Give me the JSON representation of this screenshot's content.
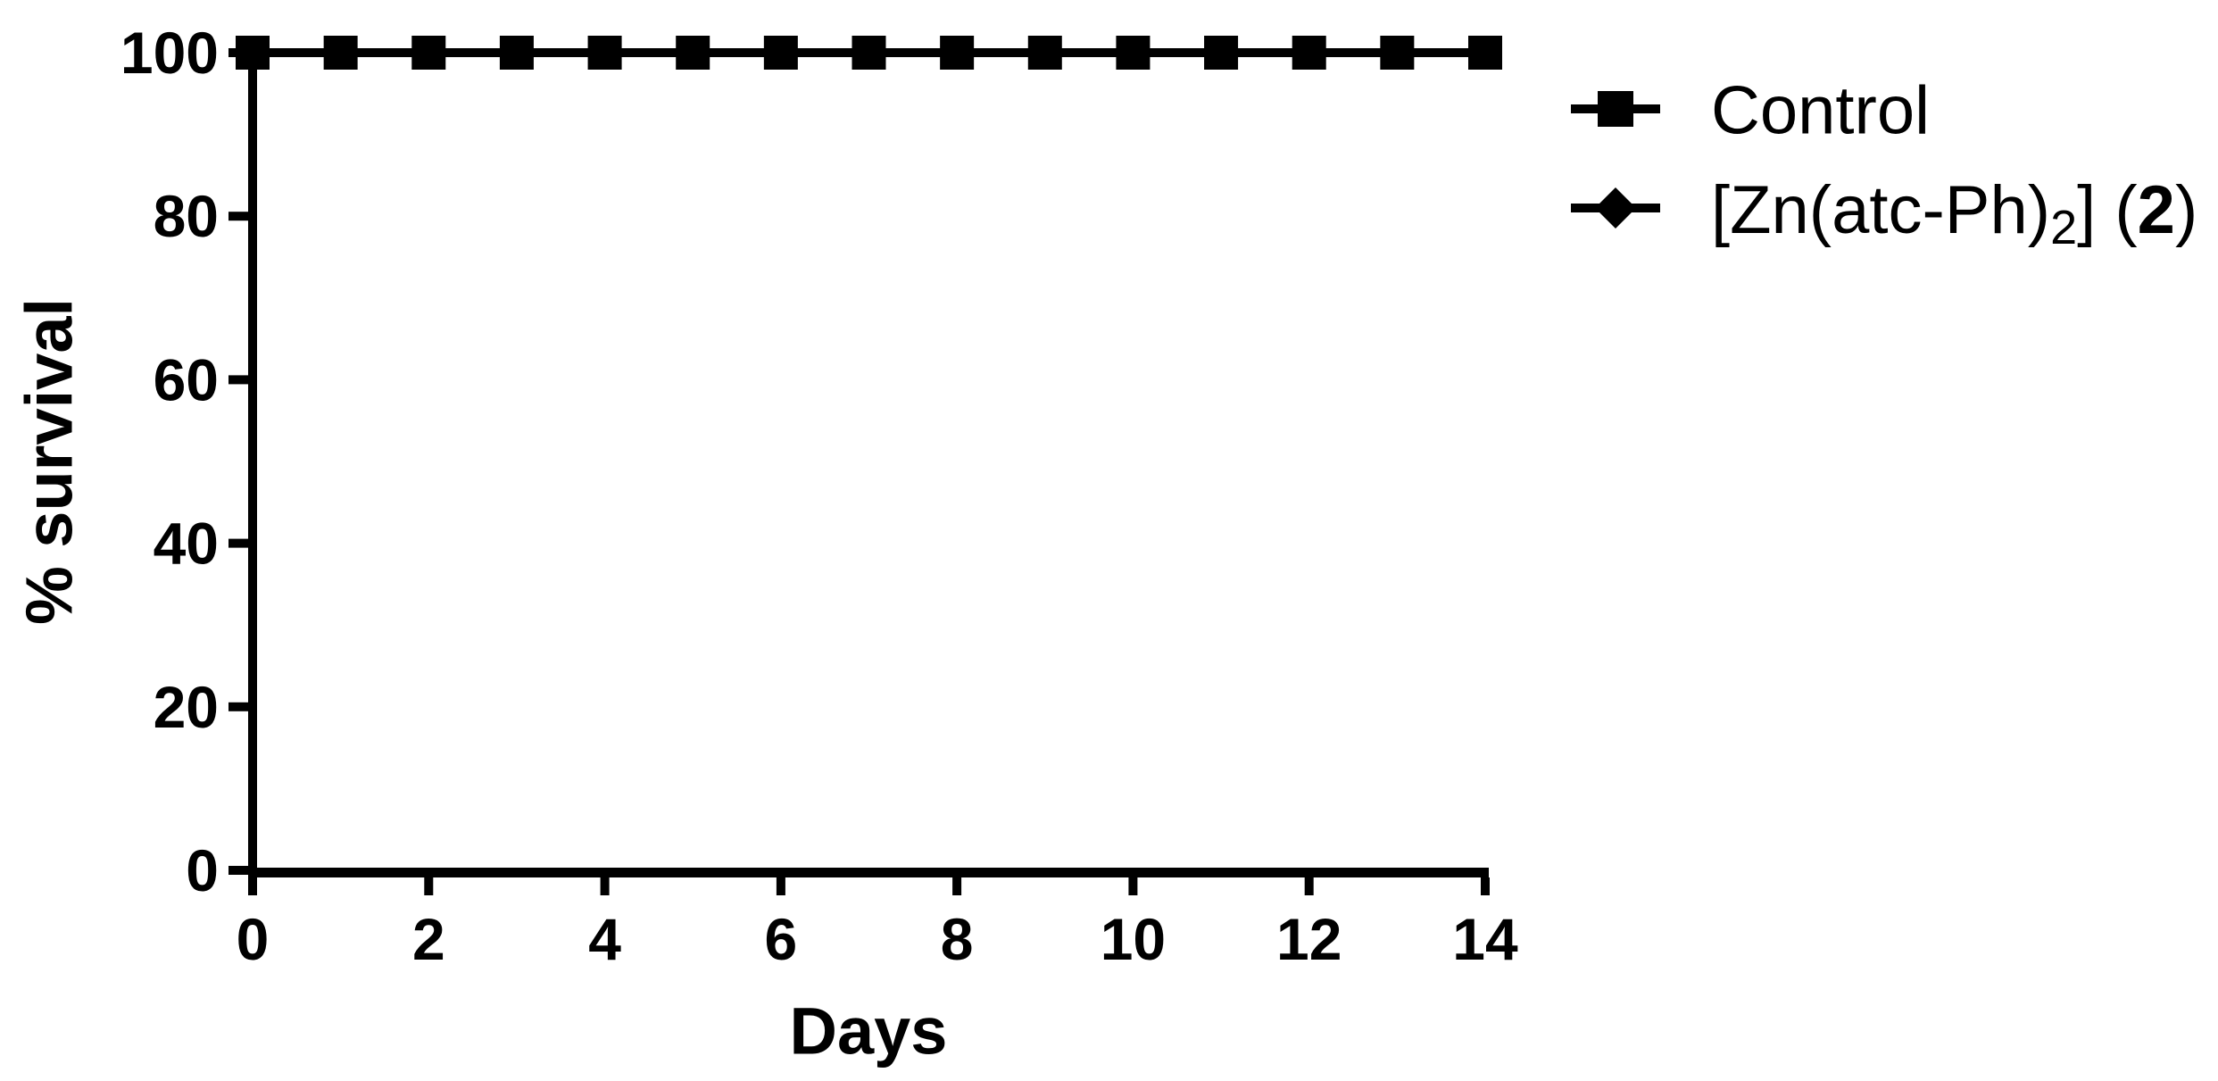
{
  "chart_data": {
    "type": "line",
    "title": "",
    "xlabel": "Days",
    "ylabel": "% survival",
    "x": [
      0,
      1,
      2,
      3,
      4,
      5,
      6,
      7,
      8,
      9,
      10,
      11,
      12,
      13,
      14
    ],
    "series": [
      {
        "name": "Control",
        "marker": "square",
        "values": [
          100,
          100,
          100,
          100,
          100,
          100,
          100,
          100,
          100,
          100,
          100,
          100,
          100,
          100,
          100
        ]
      },
      {
        "name": "[Zn(atc-Ph)2] (2)",
        "marker": "diamond",
        "values": [
          100,
          100,
          100,
          100,
          100,
          100,
          100,
          100,
          100,
          100,
          100,
          100,
          100,
          100,
          100
        ]
      }
    ],
    "xlim": [
      0,
      14
    ],
    "ylim": [
      0,
      100
    ],
    "x_ticks": [
      0,
      2,
      4,
      6,
      8,
      10,
      12,
      14
    ],
    "y_ticks": [
      0,
      20,
      40,
      60,
      80,
      100
    ],
    "grid": false,
    "legend_position": "right-top"
  },
  "axes": {
    "x_title": "Days",
    "y_title": "% survival",
    "x_tick_labels": [
      "0",
      "2",
      "4",
      "6",
      "8",
      "10",
      "12",
      "14"
    ],
    "y_tick_labels": [
      "100",
      "80",
      "60",
      "40",
      "20",
      "0"
    ]
  },
  "legend": {
    "items": [
      {
        "id": "control",
        "marker": "square-marker-icon",
        "label": "Control"
      },
      {
        "id": "zn-atc-ph",
        "marker": "diamond-marker-icon",
        "label_prefix": "[Zn(atc-Ph)",
        "label_subscript": "2",
        "label_mid": "] (",
        "label_bold": "2",
        "label_suffix": ")"
      }
    ]
  },
  "colors": {
    "line": "#000000",
    "background": "#ffffff"
  }
}
